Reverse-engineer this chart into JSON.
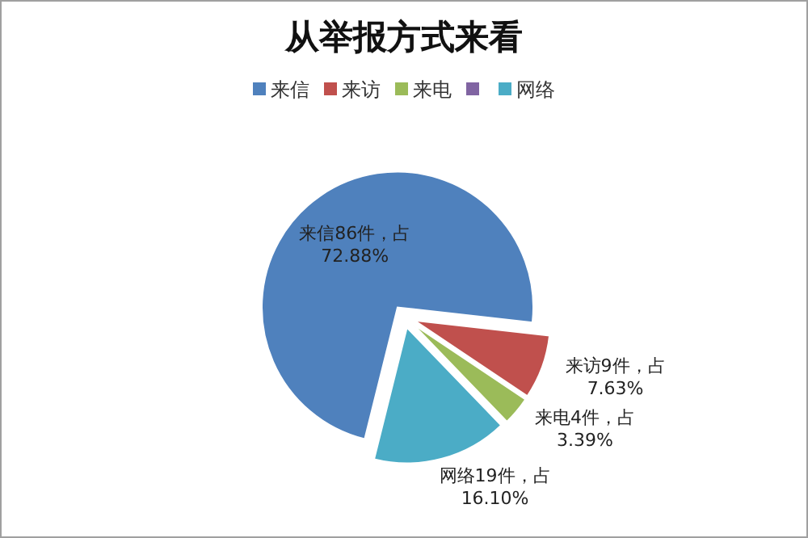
{
  "chart_data": {
    "type": "pie",
    "title": "从举报方式来看",
    "categories": [
      "来信",
      "来访",
      "来电",
      null,
      "网络"
    ],
    "values": [
      86,
      9,
      4,
      0,
      19
    ],
    "colors": [
      "#4f81bd",
      "#c0504d",
      "#9bbb59",
      "#8064a2",
      "#4bacc6"
    ],
    "value_labels": [
      "来信86件，占72.88%",
      "来访9件，占7.63%",
      "来电4件，占3.39%",
      null,
      "网络19件，占16.10%"
    ],
    "legend": "top"
  }
}
